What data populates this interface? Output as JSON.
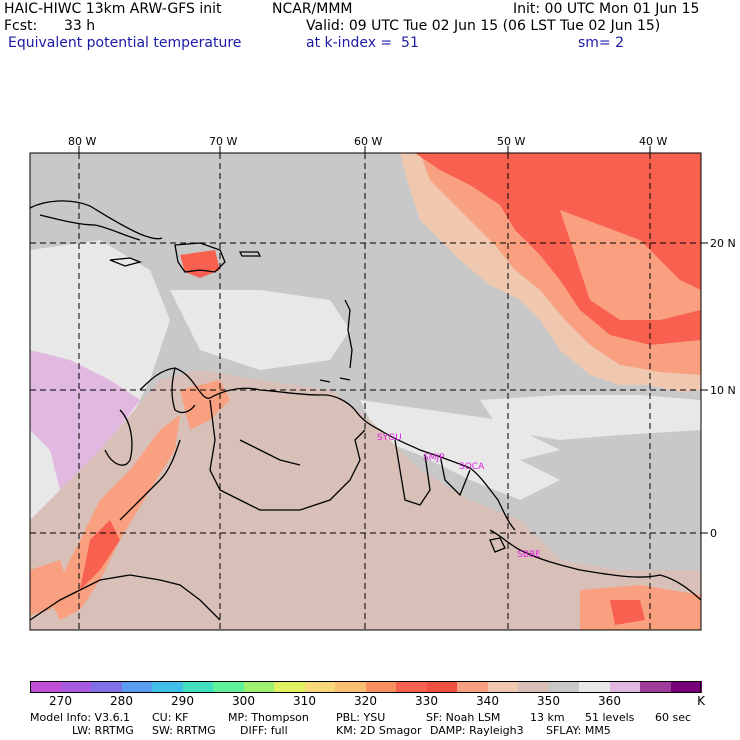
{
  "header": {
    "model_title": "HAIC-HIWC 13km ARW-GFS init",
    "org": "NCAR/MMM",
    "init": "Init: 00 UTC Mon 01 Jun 15",
    "fcst_label": "Fcst:",
    "fcst_value": "33 h",
    "valid": "Valid: 09 UTC Tue 02 Jun 15 (06 LST Tue 02 Jun 15)",
    "field": "Equivalent potential temperature",
    "level": "at k-index =  51",
    "smooth": "sm= 2"
  },
  "map": {
    "lon_labels": [
      "80 W",
      "70 W",
      "60 W",
      "50 W",
      "40 W"
    ],
    "lat_labels": [
      "20 N",
      "10 N",
      "0"
    ],
    "stations": [
      "SYGU",
      "SMJP",
      "SOCA",
      "SBBE"
    ],
    "station_color": "#e020e0",
    "grid_style": "dashed"
  },
  "colorbar": {
    "colors": [
      "#c050d8",
      "#a85ae0",
      "#8070e6",
      "#5a9cf0",
      "#40c0e8",
      "#40e0c0",
      "#60f09a",
      "#a0f070",
      "#e0f060",
      "#f8d878",
      "#f8c070",
      "#f89060",
      "#f86050",
      "#f05040",
      "#f8a080",
      "#f0c8b0",
      "#d8c0b8",
      "#c8c8c8",
      "#e8e8e8",
      "#e0b8e0",
      "#a03c9c",
      "#780078"
    ],
    "labels": [
      "270",
      "280",
      "290",
      "300",
      "310",
      "320",
      "330",
      "340",
      "350",
      "360",
      "K"
    ]
  },
  "footer": {
    "line1": [
      "Model Info: V3.6.1",
      "CU: KF",
      "MP: Thompson",
      "PBL: YSU",
      "SF: Noah LSM",
      "13 km",
      "51 levels",
      "60 sec"
    ],
    "line2": [
      "LW: RRTMG",
      "SW: RRTMG",
      "DIFF: full",
      "KM: 2D Smagor",
      "DAMP: Rayleigh3",
      "SFLAY: MM5"
    ]
  }
}
